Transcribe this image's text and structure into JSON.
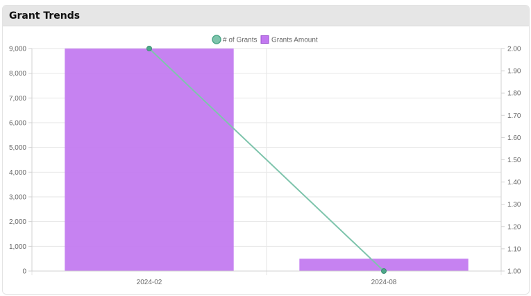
{
  "panel": {
    "title": "Grant Trends"
  },
  "chart_data": {
    "type": "bar",
    "categories": [
      "2024-02",
      "2024-08"
    ],
    "series": [
      {
        "name": "Grants Amount",
        "type": "bar",
        "axis": "left",
        "color": "#c278f0",
        "values": [
          9000,
          500
        ]
      },
      {
        "name": "# of Grants",
        "type": "line",
        "axis": "right",
        "color": "#7ec4ac",
        "values": [
          2,
          1
        ]
      }
    ],
    "y_left": {
      "min": 0,
      "max": 9000,
      "ticks": [
        "0",
        "1,000",
        "2,000",
        "3,000",
        "4,000",
        "5,000",
        "6,000",
        "7,000",
        "8,000",
        "9,000"
      ]
    },
    "y_right": {
      "min": 1,
      "max": 2,
      "ticks": [
        "1.00",
        "1.10",
        "1.20",
        "1.30",
        "1.40",
        "1.50",
        "1.60",
        "1.70",
        "1.80",
        "1.90",
        "2.00"
      ]
    },
    "legend": {
      "position": "top",
      "items": [
        "# of Grants",
        "Grants Amount"
      ]
    },
    "grid": true
  }
}
